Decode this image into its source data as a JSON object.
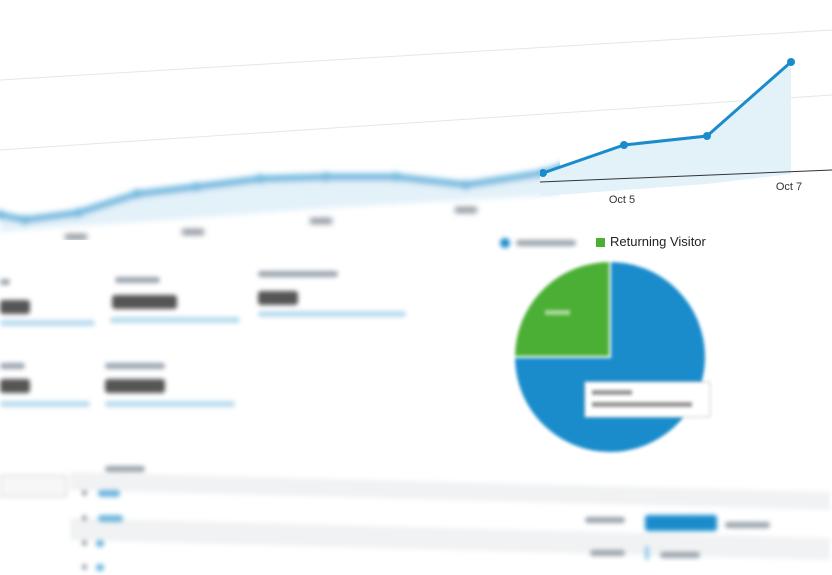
{
  "chart_data": {
    "type": "area",
    "x": [
      "",
      "",
      "",
      "",
      "",
      "",
      "",
      "",
      "",
      "",
      "Oct 5",
      "",
      "Oct 7"
    ],
    "tick_labels": [
      "Oct 5",
      "Oct 7"
    ],
    "values": [
      15,
      10,
      17,
      36,
      43,
      51,
      53,
      53,
      45,
      57,
      85,
      94,
      168
    ],
    "grid": true,
    "line_color": "#1a8ccc",
    "fill_color": "#e3f1f9"
  },
  "pie": {
    "legend": [
      {
        "label": "",
        "color": "#1a8ccc"
      },
      {
        "label": "Returning Visitor",
        "color": "#4caf35"
      }
    ],
    "slices": [
      {
        "name": "new",
        "value": 75,
        "color": "#1a8ccc"
      },
      {
        "name": "returning",
        "value": 25,
        "color": "#4caf35"
      }
    ]
  },
  "table": {
    "bar_fill": [
      0.9,
      0.05
    ],
    "bar_color": "#1a8ccc"
  }
}
